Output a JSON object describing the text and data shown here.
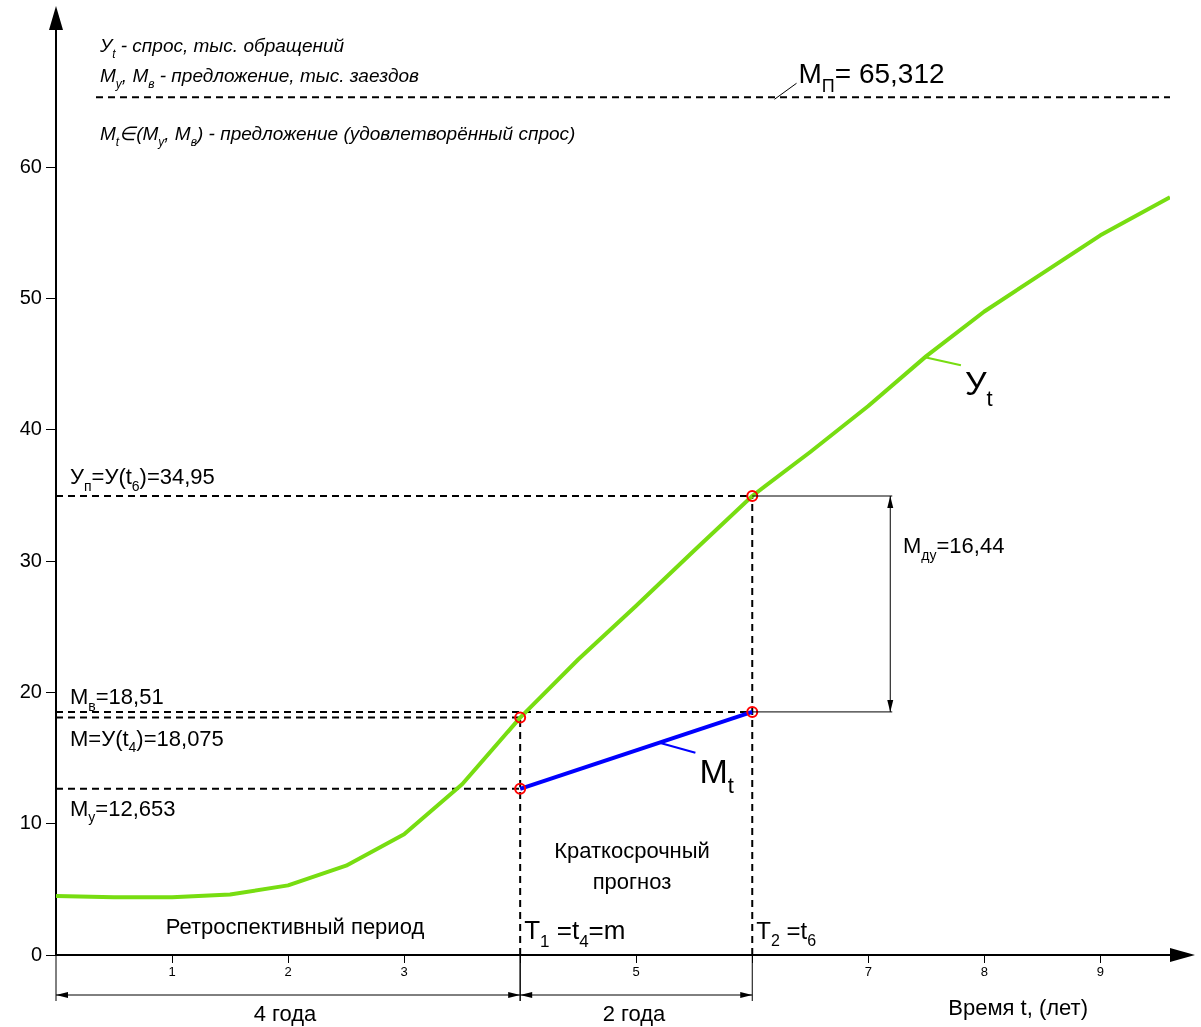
{
  "chart_data": {
    "type": "line",
    "xlabel": "Время t, (лет)",
    "xlim": [
      0,
      9.6
    ],
    "xticks": [
      1,
      2,
      3,
      {
        "value": 4,
        "label": null
      },
      5,
      {
        "value": 6,
        "label": null
      },
      7,
      8,
      9
    ],
    "ylim": [
      0,
      71.5
    ],
    "legend": "right",
    "yticks": [
      0,
      10,
      20,
      30,
      40,
      50,
      60
    ],
    "marker": "none",
    "series": [
      {
        "name": "У$_{t}$",
        "color": "#77dd11",
        "x": [
          0,
          0.5,
          1,
          1.5,
          2,
          2.5,
          3,
          3.5,
          4,
          4.5,
          5,
          5.5,
          6,
          6.5,
          7,
          7.5,
          8,
          8.5,
          9,
          9.6
        ],
        "values": [
          4.5,
          4.4,
          4.4,
          4.6,
          5.3,
          6.8,
          9.2,
          13,
          18.075,
          22.5,
          26.6,
          30.8,
          34.95,
          38.3,
          41.8,
          45.6,
          49,
          51.9,
          54.8,
          57.7
        ]
      },
      {
        "name": "М$_{t}$",
        "color": "#0000ff",
        "x": [
          4,
          6
        ],
        "values": [
          12.653,
          18.51
        ]
      },
      {
        "color": "#000000",
        "line_style": "dashed",
        "x": [
          0,
          6
        ],
        "values": [
          34.95,
          34.95
        ]
      },
      {
        "color": "#000000",
        "line_style": "dashed",
        "x": [
          0,
          6
        ],
        "values": [
          18.51,
          18.51
        ]
      },
      {
        "color": "#000000",
        "line_style": "dashed",
        "x": [
          0,
          4
        ],
        "values": [
          18.075,
          18.075
        ]
      },
      {
        "color": "#000000",
        "line_style": "dashed",
        "x": [
          0,
          4
        ],
        "values": [
          12.653,
          12.653
        ]
      },
      {
        "color": "#000000",
        "line_style": "dashed",
        "x": [
          4,
          4
        ],
        "values": [
          0,
          18.075
        ]
      },
      {
        "color": "#000000",
        "line_style": "dashed",
        "x": [
          6,
          6
        ],
        "values": [
          0,
          34.95
        ]
      },
      {
        "type": "scatter",
        "marker": "circle",
        "color": "#ff0000",
        "x": [
          4,
          4,
          6,
          6
        ],
        "values": [
          12.653,
          18.075,
          18.51,
          34.95
        ]
      }
    ],
    "ref_lines": [
      {
        "axis": "y",
        "value": 65.312,
        "label": "М$_{П}$= 65,312",
        "color": "#000000",
        "line_style": "dashed"
      }
    ],
    "annotations": [
      "У$_{t}$ - спрос, тыс. обращений",
      "М$_{у}$, М$_{в}$ - предложение, тыс. заездов",
      "М$_{t}$∈(М$_{у}$, М$_{в}$) - предложение (удовлетворённый спрос)",
      {
        "text": "У$_{п}$=У(t$_{6}$)=34,95",
        "x": 0,
        "y": 34.95
      },
      {
        "text": "М$_{в}$=18,51",
        "x": 0,
        "y": 18.51
      },
      {
        "text": "М=У(t$_{4}$)=18,075",
        "x": 0,
        "y": 18.075
      },
      {
        "text": "М$_{у}$=12,653",
        "x": 0,
        "y": 12.653
      },
      "М$_{ду}$=16,44",
      "Краткосрочный прогноз",
      "Ретроспективный период",
      {
        "text": "T$_{1}$ =t$_{4}$=m",
        "x": 4,
        "y": 0
      },
      {
        "text": "T$_{2}$ =t$_{6}$",
        "x": 6,
        "y": 0
      },
      "4 года",
      "2 года"
    ]
  }
}
